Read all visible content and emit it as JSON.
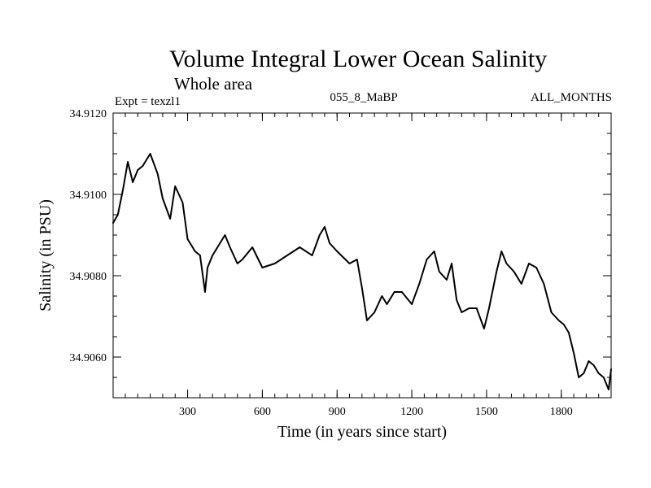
{
  "chart_data": {
    "type": "line",
    "title": "Volume Integral Lower Ocean Salinity",
    "subtitle": "Whole area",
    "experiment_label": "Expt = texzl1",
    "run_label": "055_8_MaBP",
    "months_label": "ALL_MONTHS",
    "xlabel": "Time (in years since start)",
    "ylabel": "Salinity (in PSU)",
    "xlim": [
      1,
      2000
    ],
    "ylim": [
      34.905,
      34.912
    ],
    "x_ticks": [
      300,
      600,
      900,
      1200,
      1500,
      1800
    ],
    "y_ticks": [
      "34.9060",
      "34.9080",
      "34.9100",
      "34.9120"
    ],
    "y_tick_values": [
      34.906,
      34.908,
      34.91,
      34.912
    ],
    "grid": false,
    "series": [
      {
        "name": "Salinity",
        "color": "#000000",
        "x": [
          1,
          20,
          40,
          60,
          80,
          100,
          120,
          150,
          180,
          200,
          230,
          250,
          280,
          300,
          330,
          350,
          370,
          380,
          400,
          430,
          450,
          470,
          500,
          520,
          560,
          600,
          650,
          700,
          750,
          800,
          830,
          850,
          870,
          900,
          950,
          980,
          1000,
          1020,
          1050,
          1080,
          1100,
          1130,
          1160,
          1200,
          1230,
          1260,
          1290,
          1310,
          1340,
          1360,
          1380,
          1400,
          1430,
          1460,
          1490,
          1510,
          1540,
          1560,
          1580,
          1610,
          1640,
          1670,
          1700,
          1730,
          1760,
          1790,
          1810,
          1830,
          1850,
          1870,
          1890,
          1910,
          1930,
          1950,
          1970,
          1990,
          2000
        ],
        "values": [
          34.9093,
          34.9095,
          34.9101,
          34.9108,
          34.9103,
          34.9106,
          34.9107,
          34.911,
          34.9105,
          34.9099,
          34.9094,
          34.9102,
          34.9098,
          34.9089,
          34.9086,
          34.9085,
          34.9076,
          34.9082,
          34.9085,
          34.9088,
          34.909,
          34.9087,
          34.9083,
          34.9084,
          34.9087,
          34.9082,
          34.9083,
          34.9085,
          34.9087,
          34.9085,
          34.909,
          34.9092,
          34.9088,
          34.9086,
          34.9083,
          34.9084,
          34.9077,
          34.9069,
          34.9071,
          34.9075,
          34.9073,
          34.9076,
          34.9076,
          34.9073,
          34.9078,
          34.9084,
          34.9086,
          34.9081,
          34.9079,
          34.9083,
          34.9074,
          34.9071,
          34.9072,
          34.9072,
          34.9067,
          34.9072,
          34.9081,
          34.9086,
          34.9083,
          34.9081,
          34.9078,
          34.9083,
          34.9082,
          34.9078,
          34.9071,
          34.9069,
          34.9068,
          34.9066,
          34.9061,
          34.9055,
          34.9056,
          34.9059,
          34.9058,
          34.9056,
          34.9055,
          34.9052,
          34.9057
        ]
      }
    ]
  }
}
